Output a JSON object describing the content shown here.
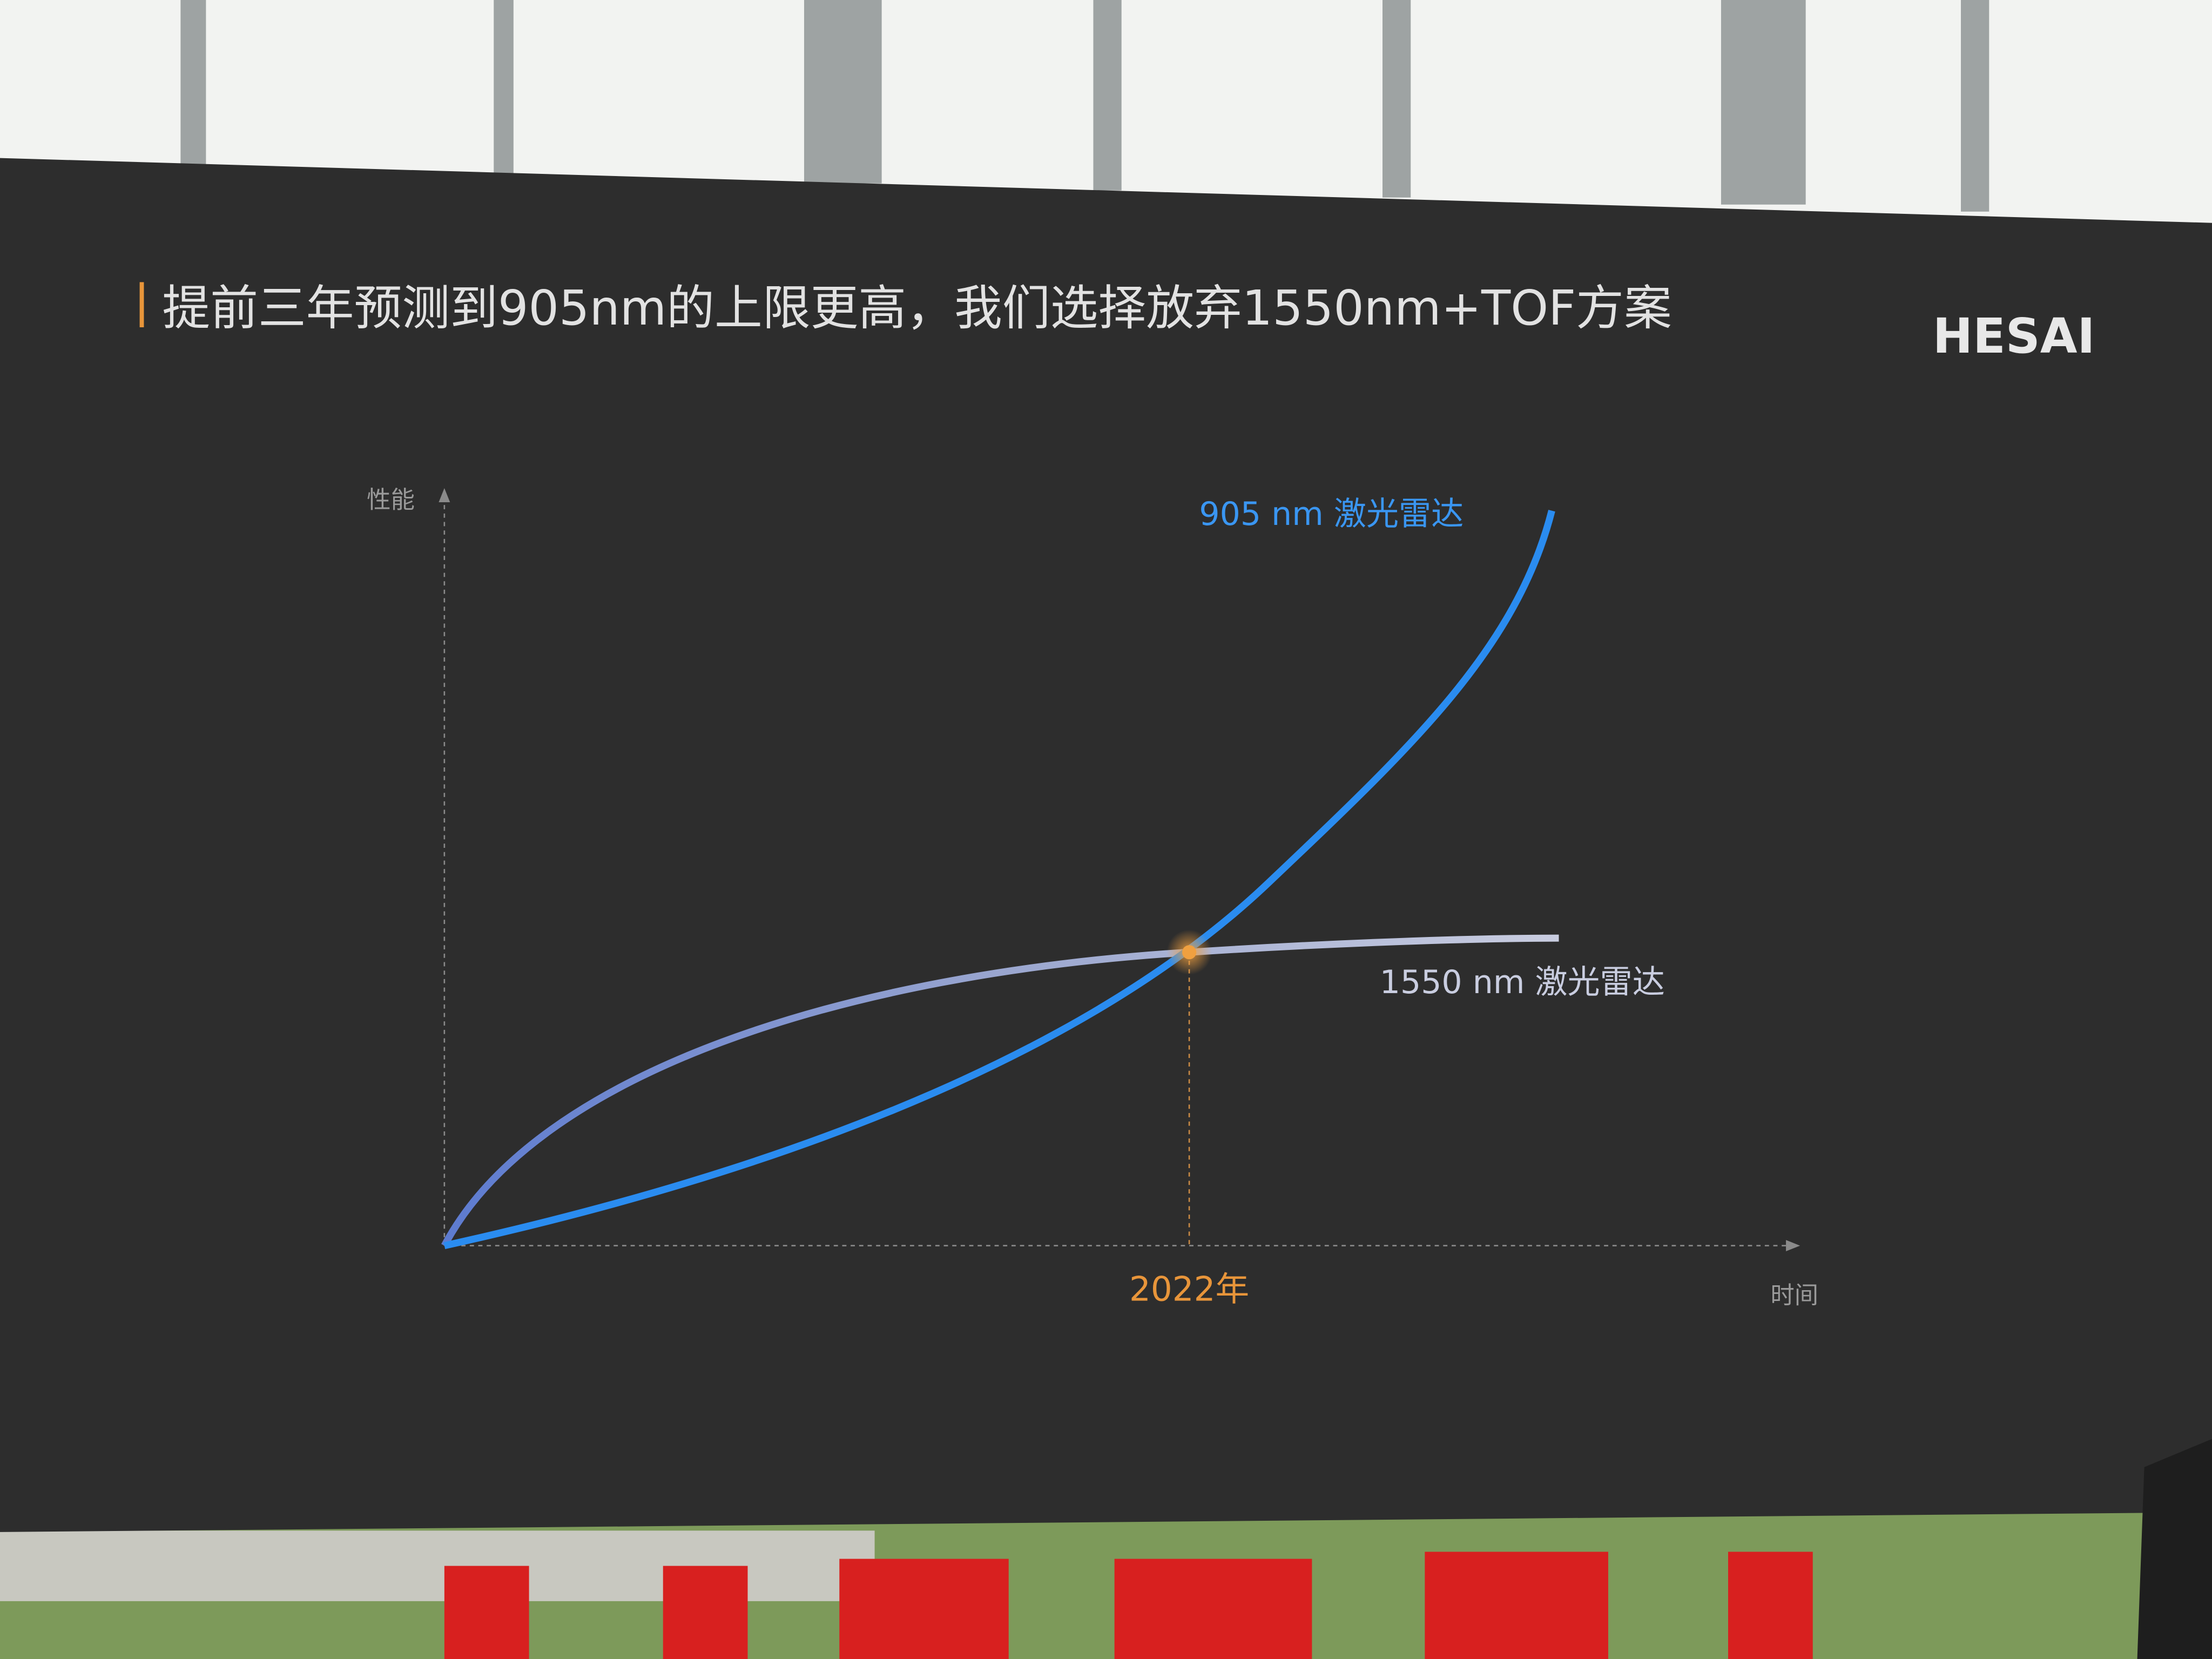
{
  "slide": {
    "title": "提前三年预测到905nm的上限更高，我们选择放弃1550nm+TOF方案",
    "logo": "HESAI",
    "y_axis_label": "性能",
    "x_axis_label": "时间",
    "curve_905_label": "905 nm 激光雷达",
    "curve_1550_label": "1550 nm 激光雷达",
    "crossing_label": "2022年"
  }
}
